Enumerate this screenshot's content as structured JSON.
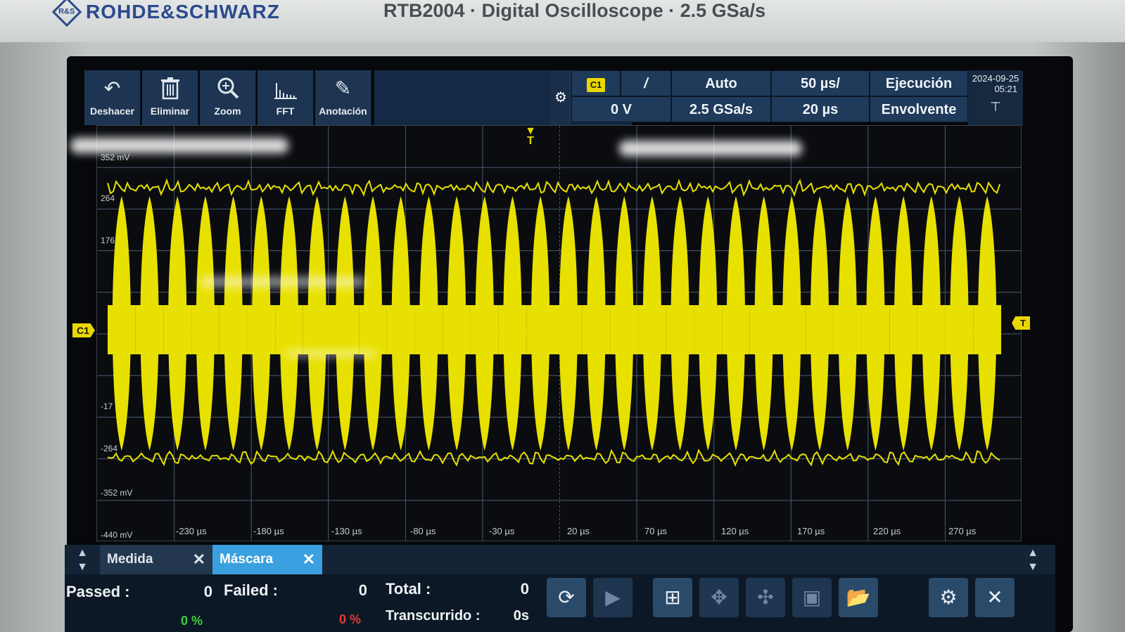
{
  "brand": {
    "logo_text": "R&S",
    "name": "ROHDE&SCHWARZ",
    "model_line": "RTB2004 · Digital Oscilloscope · 2.5 GSa/s"
  },
  "toolbar": {
    "tools": [
      {
        "label": "Deshacer",
        "icon": "undo-icon"
      },
      {
        "label": "Eliminar",
        "icon": "trash-icon"
      },
      {
        "label": "Zoom",
        "icon": "zoom-icon"
      },
      {
        "label": "FFT",
        "icon": "fft-icon"
      },
      {
        "label": "Anotación",
        "icon": "pencil-icon"
      }
    ],
    "channel": "C1",
    "trigger_slope": "/",
    "trigger_level": "0 V",
    "trigger_mode": "Auto",
    "sample_rate": "2.5 GSa/s",
    "time_div": "50 µs/",
    "time_offset": "20 µs",
    "run_state": "Ejecución",
    "acq_mode": "Envolvente",
    "date": "2024-09-25",
    "time": "05:21"
  },
  "plot": {
    "y_labels": [
      "352 mV",
      "264",
      "176",
      "-17",
      "-264",
      "-352 mV",
      "-440 mV"
    ],
    "x_labels": [
      "-230 µs",
      "-180 µs",
      "-130 µs",
      "-80 µs",
      "-30 µs",
      "20 µs",
      "70 µs",
      "120 µs",
      "170 µs",
      "220 µs",
      "270 µs"
    ],
    "trigger_marker": "T",
    "channel_marker": "C1",
    "trace_color": "#e8e000",
    "grid_color": "#4a5a70"
  },
  "panel": {
    "tabs": [
      {
        "label": "Medida"
      },
      {
        "label": "Máscara"
      }
    ],
    "passed_label": "Passed :",
    "passed_value": "0",
    "failed_label": "Failed :",
    "failed_value": "0",
    "total_label": "Total :",
    "total_value": "0",
    "elapsed_label": "Transcurrido :",
    "elapsed_value": "0s",
    "passed_pct": "0 %",
    "failed_pct": "0 %",
    "colors": {
      "accent": "#3aa0e0",
      "ok": "#3ccf3c",
      "fail": "#e23a3a"
    }
  }
}
